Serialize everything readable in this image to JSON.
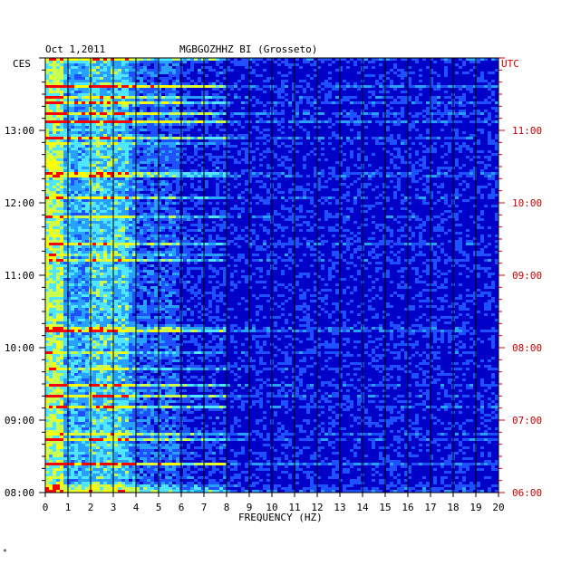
{
  "header": {
    "date": "Oct 1,2011",
    "station": "MGBGOZHHZ BI (Grosseto)"
  },
  "axes": {
    "left_tz": "CES",
    "right_tz": "UTC",
    "xlabel": "FREQUENCY (HZ)"
  },
  "footer_mark": "*",
  "colors": {
    "background": "#0000c8",
    "grid": "#000000",
    "utc": "#cc0000"
  },
  "chart_data": {
    "type": "heatmap",
    "title": "MGBGOZHHZ BI (Grosseto)",
    "xlabel": "FREQUENCY (HZ)",
    "x_ticks": [
      "0",
      "1",
      "2",
      "3",
      "4",
      "5",
      "6",
      "7",
      "8",
      "9",
      "10",
      "11",
      "12",
      "13",
      "14",
      "15",
      "16",
      "17",
      "18",
      "19",
      "20"
    ],
    "xlim": [
      0,
      20
    ],
    "y_ticks_ces": [
      "13:00",
      "12:00",
      "11:00",
      "10:00",
      "09:00",
      "08:00"
    ],
    "y_ticks_utc": [
      "11:00",
      "10:00",
      "09:00",
      "08:00",
      "07:00",
      "06:00"
    ],
    "y_tick_positions_hours_from_bottom": [
      5,
      4,
      3,
      2,
      1,
      0
    ],
    "ylim_hours": [
      0,
      6
    ],
    "colormap": [
      "#0000c8",
      "#1e50ff",
      "#28a0ff",
      "#50e6ff",
      "#c8ff50",
      "#ffff00",
      "#ff0000"
    ],
    "dominant_band_hz": [
      0,
      4
    ],
    "grid": true
  }
}
